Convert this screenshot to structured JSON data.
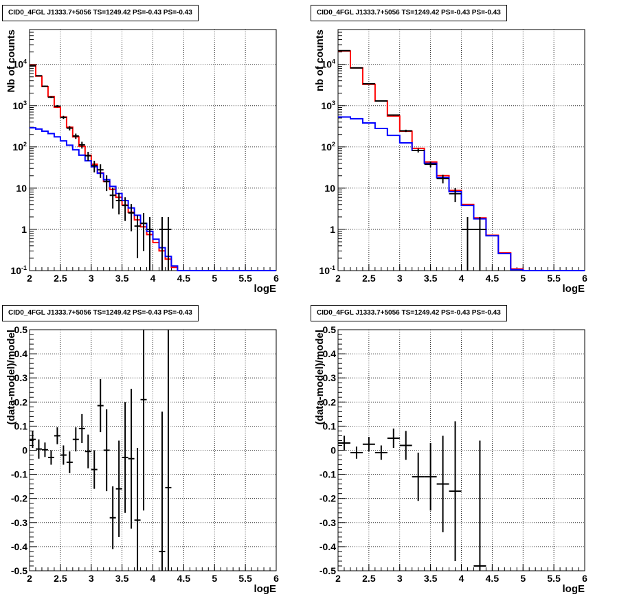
{
  "chart_data": [
    {
      "type": "step",
      "title": "CID0_4FGL J1333.7+5056 TS=1249.42 PS=-0.43 PS=-0.43",
      "xlabel": "logE",
      "ylabel": "Nb of counts",
      "xlim": [
        2,
        6
      ],
      "ylim": [
        0.1,
        70000
      ],
      "yscale": "log",
      "grid": true,
      "xticks": [
        "2",
        "2.5",
        "3",
        "3.5",
        "4",
        "4.5",
        "5",
        "5.5",
        "6"
      ],
      "yticks": [
        "10^-1",
        "1",
        "10",
        "10^2",
        "10^3",
        "10^4"
      ],
      "bin_edges": [
        2.0,
        2.1,
        2.2,
        2.3,
        2.4,
        2.5,
        2.6,
        2.7,
        2.8,
        2.9,
        3.0,
        3.1,
        3.2,
        3.3,
        3.4,
        3.5,
        3.6,
        3.7,
        3.8,
        3.9,
        4.0,
        4.1,
        4.2,
        4.3,
        4.4,
        4.5,
        4.6,
        4.7,
        4.8,
        4.9,
        5.0,
        5.1,
        5.2,
        5.3,
        5.4,
        5.5,
        5.6,
        5.7,
        5.8,
        5.9,
        6.0
      ],
      "series": [
        {
          "color": "#ff0000",
          "values": [
            9500,
            5200,
            2900,
            1650,
            920,
            530,
            300,
            175,
            103,
            62,
            38,
            23.5,
            14.5,
            9.3,
            6,
            3.9,
            2.6,
            1.7,
            1.15,
            0.75,
            0.48,
            0.3,
            0.19,
            0.12,
            0.1,
            0.1,
            0.1,
            0.1,
            0.1,
            0.1,
            0.1,
            0.1,
            0.1,
            0.1,
            0.1,
            0.1,
            0.1,
            0.1,
            0.1,
            0.1
          ]
        },
        {
          "color": "#0000ff",
          "values": [
            290,
            270,
            240,
            210,
            175,
            140,
            110,
            85,
            63,
            46,
            33,
            23,
            16,
            11,
            7.4,
            5,
            3.3,
            2.2,
            1.4,
            0.9,
            0.58,
            0.36,
            0.22,
            0.13,
            0.1,
            0.1,
            0.1,
            0.1,
            0.1,
            0.1,
            0.1,
            0.1,
            0.1,
            0.1,
            0.1,
            0.1,
            0.1,
            0.1,
            0.1,
            0.1
          ]
        }
      ],
      "points": [
        {
          "x": 2.05,
          "y": 9200,
          "err": 200
        },
        {
          "x": 2.15,
          "y": 5300,
          "err": 150
        },
        {
          "x": 2.25,
          "y": 2950,
          "err": 110
        },
        {
          "x": 2.35,
          "y": 1600,
          "err": 80
        },
        {
          "x": 2.45,
          "y": 970,
          "err": 60
        },
        {
          "x": 2.55,
          "y": 520,
          "err": 45
        },
        {
          "x": 2.65,
          "y": 285,
          "err": 34
        },
        {
          "x": 2.75,
          "y": 183,
          "err": 27
        },
        {
          "x": 2.85,
          "y": 112,
          "err": 21
        },
        {
          "x": 2.95,
          "y": 61,
          "err": 15
        },
        {
          "x": 3.05,
          "y": 35,
          "err": 11
        },
        {
          "x": 3.15,
          "y": 27.8,
          "err": 10
        },
        {
          "x": 3.25,
          "y": 14.5,
          "err": 6
        },
        {
          "x": 3.35,
          "y": 6.7,
          "err": 3.5
        },
        {
          "x": 3.45,
          "y": 5,
          "err": 2.7
        },
        {
          "x": 3.55,
          "y": 3.8,
          "err": 2.2
        },
        {
          "x": 3.65,
          "y": 2.5,
          "err": 1.6
        },
        {
          "x": 3.75,
          "y": 1.2,
          "err": 1.0
        },
        {
          "x": 3.85,
          "y": 1.4,
          "err": 1.1
        },
        {
          "x": 3.95,
          "y": 1,
          "err": 0.99
        },
        {
          "x": 4.15,
          "y": 1,
          "err": 0.99
        },
        {
          "x": 4.25,
          "y": 1,
          "err": 0.99
        }
      ]
    },
    {
      "type": "step",
      "title": "CID0_4FGL J1333.7+5056 TS=1249.42 PS=-0.43 PS=-0.43",
      "xlabel": "logE",
      "ylabel": "nb of counts",
      "xlim": [
        2,
        6
      ],
      "ylim": [
        0.1,
        70000
      ],
      "yscale": "log",
      "grid": true,
      "xticks": [
        "2",
        "2.5",
        "3",
        "3.5",
        "4",
        "4.5",
        "5",
        "5.5",
        "6"
      ],
      "yticks": [
        "10^-1",
        "1",
        "10",
        "10^2",
        "10^3",
        "10^4"
      ],
      "bin_edges": [
        2.0,
        2.2,
        2.4,
        2.6,
        2.8,
        3.0,
        3.2,
        3.4,
        3.6,
        3.8,
        4.0,
        4.2,
        4.4,
        4.6,
        4.8,
        5.0,
        5.2,
        5.4,
        5.6,
        5.8,
        6.0
      ],
      "series": [
        {
          "color": "#ff0000",
          "values": [
            21000,
            8200,
            3300,
            1300,
            560,
            240,
            92,
            43,
            20,
            8.8,
            4,
            1.9,
            0.72,
            0.27,
            0.11,
            0.1,
            0.1,
            0.1,
            0.1,
            0.1
          ]
        },
        {
          "color": "#0000ff",
          "values": [
            530,
            480,
            380,
            280,
            190,
            125,
            82,
            40,
            18,
            8.2,
            3.8,
            1.8,
            0.7,
            0.26,
            0.105,
            0.1,
            0.1,
            0.1,
            0.1,
            0.1
          ]
        }
      ],
      "points": [
        {
          "x": 2.1,
          "y": 21500,
          "err": 150
        },
        {
          "x": 2.3,
          "y": 8200,
          "err": 90
        },
        {
          "x": 2.5,
          "y": 3380,
          "err": 60
        },
        {
          "x": 2.7,
          "y": 1300,
          "err": 36
        },
        {
          "x": 2.9,
          "y": 590,
          "err": 24
        },
        {
          "x": 3.1,
          "y": 245,
          "err": 16
        },
        {
          "x": 3.3,
          "y": 82,
          "err": 9
        },
        {
          "x": 3.5,
          "y": 38,
          "err": 6
        },
        {
          "x": 3.7,
          "y": 17,
          "err": 4
        },
        {
          "x": 3.9,
          "y": 7.3,
          "err": 2.7
        },
        {
          "x": 4.1,
          "y": 1,
          "err": 0.99
        },
        {
          "x": 4.3,
          "y": 1,
          "err": 0.99
        }
      ]
    },
    {
      "type": "scatter",
      "title": "CID0_4FGL J1333.7+5056 TS=1249.42 PS=-0.43 PS=-0.43",
      "xlabel": "logE",
      "ylabel": "(data-model)/model",
      "xlim": [
        2,
        6
      ],
      "ylim": [
        -0.5,
        0.5
      ],
      "yscale": "linear",
      "grid": true,
      "xticks": [
        "2",
        "2.5",
        "3",
        "3.5",
        "4",
        "4.5",
        "5",
        "5.5",
        "6"
      ],
      "yticks": [
        "-0.5",
        "-0.4",
        "-0.3",
        "-0.2",
        "-0.1",
        "0",
        "0.1",
        "0.2",
        "0.3",
        "0.4",
        "0.5"
      ],
      "points": [
        {
          "x": 2.05,
          "y": 0.045,
          "err": 0.035,
          "xerr": 0.05
        },
        {
          "x": 2.15,
          "y": 0.005,
          "err": 0.04,
          "xerr": 0.05
        },
        {
          "x": 2.25,
          "y": 0.002,
          "err": 0.03,
          "xerr": 0.05
        },
        {
          "x": 2.35,
          "y": -0.03,
          "err": 0.03,
          "xerr": 0.05
        },
        {
          "x": 2.45,
          "y": 0.06,
          "err": 0.035,
          "xerr": 0.05
        },
        {
          "x": 2.55,
          "y": -0.02,
          "err": 0.04,
          "xerr": 0.05
        },
        {
          "x": 2.65,
          "y": -0.05,
          "err": 0.045,
          "xerr": 0.05
        },
        {
          "x": 2.75,
          "y": 0.045,
          "err": 0.05,
          "xerr": 0.05
        },
        {
          "x": 2.85,
          "y": 0.09,
          "err": 0.06,
          "xerr": 0.05
        },
        {
          "x": 2.95,
          "y": -0.005,
          "err": 0.07,
          "xerr": 0.05
        },
        {
          "x": 3.05,
          "y": -0.08,
          "err": 0.08,
          "xerr": 0.05
        },
        {
          "x": 3.15,
          "y": 0.185,
          "err": 0.11,
          "xerr": 0.05
        },
        {
          "x": 3.25,
          "y": 0.0,
          "err": 0.17,
          "xerr": 0.05
        },
        {
          "x": 3.35,
          "y": -0.28,
          "err": 0.13,
          "xerr": 0.05
        },
        {
          "x": 3.45,
          "y": -0.16,
          "err": 0.2,
          "xerr": 0.05
        },
        {
          "x": 3.55,
          "y": -0.03,
          "err": 0.23,
          "xerr": 0.05
        },
        {
          "x": 3.65,
          "y": -0.035,
          "err": 0.29,
          "xerr": 0.05
        },
        {
          "x": 3.75,
          "y": -0.29,
          "err": 0.3,
          "xerr": 0.05
        },
        {
          "x": 3.85,
          "y": 0.21,
          "err": 0.46,
          "xerr": 0.05
        },
        {
          "x": 4.15,
          "y": -0.42,
          "err": 0.58,
          "xerr": 0.05
        },
        {
          "x": 4.25,
          "y": -0.155,
          "err": 0.7,
          "xerr": 0.05
        }
      ]
    },
    {
      "type": "scatter",
      "title": "CID0_4FGL J1333.7+5056 TS=1249.42 PS=-0.43 PS=-0.43",
      "xlabel": "logE",
      "ylabel": "(data-model)/model",
      "xlim": [
        2,
        6
      ],
      "ylim": [
        -0.5,
        0.5
      ],
      "yscale": "linear",
      "grid": true,
      "xticks": [
        "2",
        "2.5",
        "3",
        "3.5",
        "4",
        "4.5",
        "5",
        "5.5",
        "6"
      ],
      "yticks": [
        "-0.5",
        "-0.4",
        "-0.3",
        "-0.2",
        "-0.1",
        "0",
        "0.1",
        "0.2",
        "0.3",
        "0.4",
        "0.5"
      ],
      "points": [
        {
          "x": 2.1,
          "y": 0.03,
          "err": 0.03,
          "xerr": 0.1
        },
        {
          "x": 2.3,
          "y": -0.01,
          "err": 0.025,
          "xerr": 0.1
        },
        {
          "x": 2.5,
          "y": 0.025,
          "err": 0.03,
          "xerr": 0.1
        },
        {
          "x": 2.7,
          "y": -0.01,
          "err": 0.03,
          "xerr": 0.1
        },
        {
          "x": 2.9,
          "y": 0.05,
          "err": 0.04,
          "xerr": 0.1
        },
        {
          "x": 3.1,
          "y": 0.02,
          "err": 0.06,
          "xerr": 0.1
        },
        {
          "x": 3.3,
          "y": -0.11,
          "err": 0.1,
          "xerr": 0.1
        },
        {
          "x": 3.5,
          "y": -0.11,
          "err": 0.14,
          "xerr": 0.1
        },
        {
          "x": 3.7,
          "y": -0.14,
          "err": 0.2,
          "xerr": 0.1
        },
        {
          "x": 3.9,
          "y": -0.17,
          "err": 0.29,
          "xerr": 0.1
        },
        {
          "x": 4.3,
          "y": -0.48,
          "err": 0.52,
          "xerr": 0.1
        }
      ]
    }
  ]
}
